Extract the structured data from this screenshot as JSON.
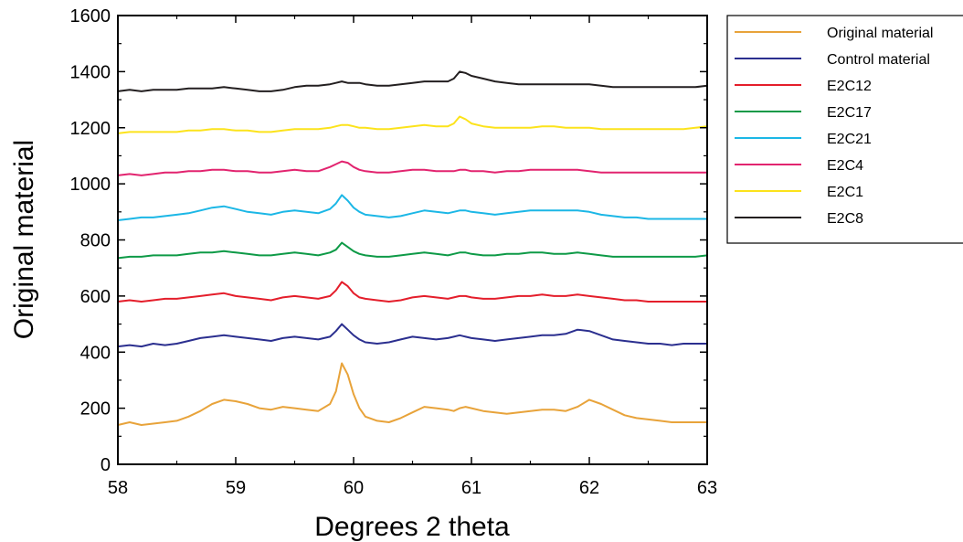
{
  "chart_data": {
    "type": "line",
    "title": "",
    "xlabel": "Degrees 2 theta",
    "ylabel": "Original material",
    "xlim": [
      58,
      63
    ],
    "ylim": [
      0,
      1600
    ],
    "x_major_ticks": [
      58,
      59,
      60,
      61,
      62,
      63
    ],
    "y_major_ticks": [
      0,
      200,
      400,
      600,
      800,
      1000,
      1200,
      1400,
      1600
    ],
    "grid": false,
    "legend_position": "right",
    "x": [
      58.0,
      58.1,
      58.2,
      58.3,
      58.4,
      58.5,
      58.6,
      58.7,
      58.8,
      58.9,
      59.0,
      59.1,
      59.2,
      59.3,
      59.4,
      59.5,
      59.6,
      59.7,
      59.8,
      59.85,
      59.9,
      59.95,
      60.0,
      60.05,
      60.1,
      60.2,
      60.3,
      60.4,
      60.5,
      60.6,
      60.7,
      60.8,
      60.85,
      60.9,
      60.95,
      61.0,
      61.1,
      61.2,
      61.3,
      61.4,
      61.5,
      61.6,
      61.7,
      61.8,
      61.9,
      62.0,
      62.1,
      62.2,
      62.3,
      62.4,
      62.5,
      62.6,
      62.7,
      62.8,
      62.9,
      63.0
    ],
    "series": [
      {
        "name": "Original material",
        "color": "#E8A33A",
        "values": [
          140,
          150,
          140,
          145,
          150,
          155,
          170,
          190,
          215,
          230,
          225,
          215,
          200,
          195,
          205,
          200,
          195,
          190,
          215,
          260,
          360,
          320,
          250,
          200,
          170,
          155,
          150,
          165,
          185,
          205,
          200,
          195,
          190,
          200,
          205,
          200,
          190,
          185,
          180,
          185,
          190,
          195,
          195,
          190,
          205,
          230,
          215,
          195,
          175,
          165,
          160,
          155,
          150,
          150,
          150,
          150
        ]
      },
      {
        "name": "Control material",
        "color": "#2B2F8F",
        "values": [
          420,
          425,
          420,
          430,
          425,
          430,
          440,
          450,
          455,
          460,
          455,
          450,
          445,
          440,
          450,
          455,
          450,
          445,
          455,
          475,
          500,
          480,
          460,
          445,
          435,
          430,
          435,
          445,
          455,
          450,
          445,
          450,
          455,
          460,
          455,
          450,
          445,
          440,
          445,
          450,
          455,
          460,
          460,
          465,
          480,
          475,
          460,
          445,
          440,
          435,
          430,
          430,
          425,
          430,
          430,
          430
        ]
      },
      {
        "name": "E2C12",
        "color": "#E41E2B",
        "values": [
          580,
          585,
          580,
          585,
          590,
          590,
          595,
          600,
          605,
          610,
          600,
          595,
          590,
          585,
          595,
          600,
          595,
          590,
          600,
          620,
          650,
          635,
          610,
          595,
          590,
          585,
          580,
          585,
          595,
          600,
          595,
          590,
          595,
          600,
          600,
          595,
          590,
          590,
          595,
          600,
          600,
          605,
          600,
          600,
          605,
          600,
          595,
          590,
          585,
          585,
          580,
          580,
          580,
          580,
          580,
          580
        ]
      },
      {
        "name": "E2C17",
        "color": "#0E9A47",
        "values": [
          735,
          740,
          740,
          745,
          745,
          745,
          750,
          755,
          755,
          760,
          755,
          750,
          745,
          745,
          750,
          755,
          750,
          745,
          755,
          765,
          790,
          775,
          760,
          750,
          745,
          740,
          740,
          745,
          750,
          755,
          750,
          745,
          750,
          755,
          755,
          750,
          745,
          745,
          750,
          750,
          755,
          755,
          750,
          750,
          755,
          750,
          745,
          740,
          740,
          740,
          740,
          740,
          740,
          740,
          740,
          745
        ]
      },
      {
        "name": "E2C21",
        "color": "#1CB7E6",
        "values": [
          870,
          875,
          880,
          880,
          885,
          890,
          895,
          905,
          915,
          920,
          910,
          900,
          895,
          890,
          900,
          905,
          900,
          895,
          910,
          930,
          960,
          940,
          915,
          900,
          890,
          885,
          880,
          885,
          895,
          905,
          900,
          895,
          900,
          905,
          905,
          900,
          895,
          890,
          895,
          900,
          905,
          905,
          905,
          905,
          905,
          900,
          890,
          885,
          880,
          880,
          875,
          875,
          875,
          875,
          875,
          875
        ]
      },
      {
        "name": "E2C4",
        "color": "#E2246F",
        "values": [
          1030,
          1035,
          1030,
          1035,
          1040,
          1040,
          1045,
          1045,
          1050,
          1050,
          1045,
          1045,
          1040,
          1040,
          1045,
          1050,
          1045,
          1045,
          1060,
          1070,
          1080,
          1075,
          1060,
          1050,
          1045,
          1040,
          1040,
          1045,
          1050,
          1050,
          1045,
          1045,
          1045,
          1050,
          1050,
          1045,
          1045,
          1040,
          1045,
          1045,
          1050,
          1050,
          1050,
          1050,
          1050,
          1045,
          1040,
          1040,
          1040,
          1040,
          1040,
          1040,
          1040,
          1040,
          1040,
          1040
        ]
      },
      {
        "name": "E2C1",
        "color": "#FCE31C",
        "values": [
          1180,
          1185,
          1185,
          1185,
          1185,
          1185,
          1190,
          1190,
          1195,
          1195,
          1190,
          1190,
          1185,
          1185,
          1190,
          1195,
          1195,
          1195,
          1200,
          1205,
          1210,
          1210,
          1205,
          1200,
          1200,
          1195,
          1195,
          1200,
          1205,
          1210,
          1205,
          1205,
          1215,
          1240,
          1230,
          1215,
          1205,
          1200,
          1200,
          1200,
          1200,
          1205,
          1205,
          1200,
          1200,
          1200,
          1195,
          1195,
          1195,
          1195,
          1195,
          1195,
          1195,
          1195,
          1200,
          1205
        ]
      },
      {
        "name": "E2C8",
        "color": "#231F20",
        "values": [
          1330,
          1335,
          1330,
          1335,
          1335,
          1335,
          1340,
          1340,
          1340,
          1345,
          1340,
          1335,
          1330,
          1330,
          1335,
          1345,
          1350,
          1350,
          1355,
          1360,
          1365,
          1360,
          1360,
          1360,
          1355,
          1350,
          1350,
          1355,
          1360,
          1365,
          1365,
          1365,
          1375,
          1400,
          1395,
          1385,
          1375,
          1365,
          1360,
          1355,
          1355,
          1355,
          1355,
          1355,
          1355,
          1355,
          1350,
          1345,
          1345,
          1345,
          1345,
          1345,
          1345,
          1345,
          1345,
          1350
        ]
      }
    ]
  }
}
